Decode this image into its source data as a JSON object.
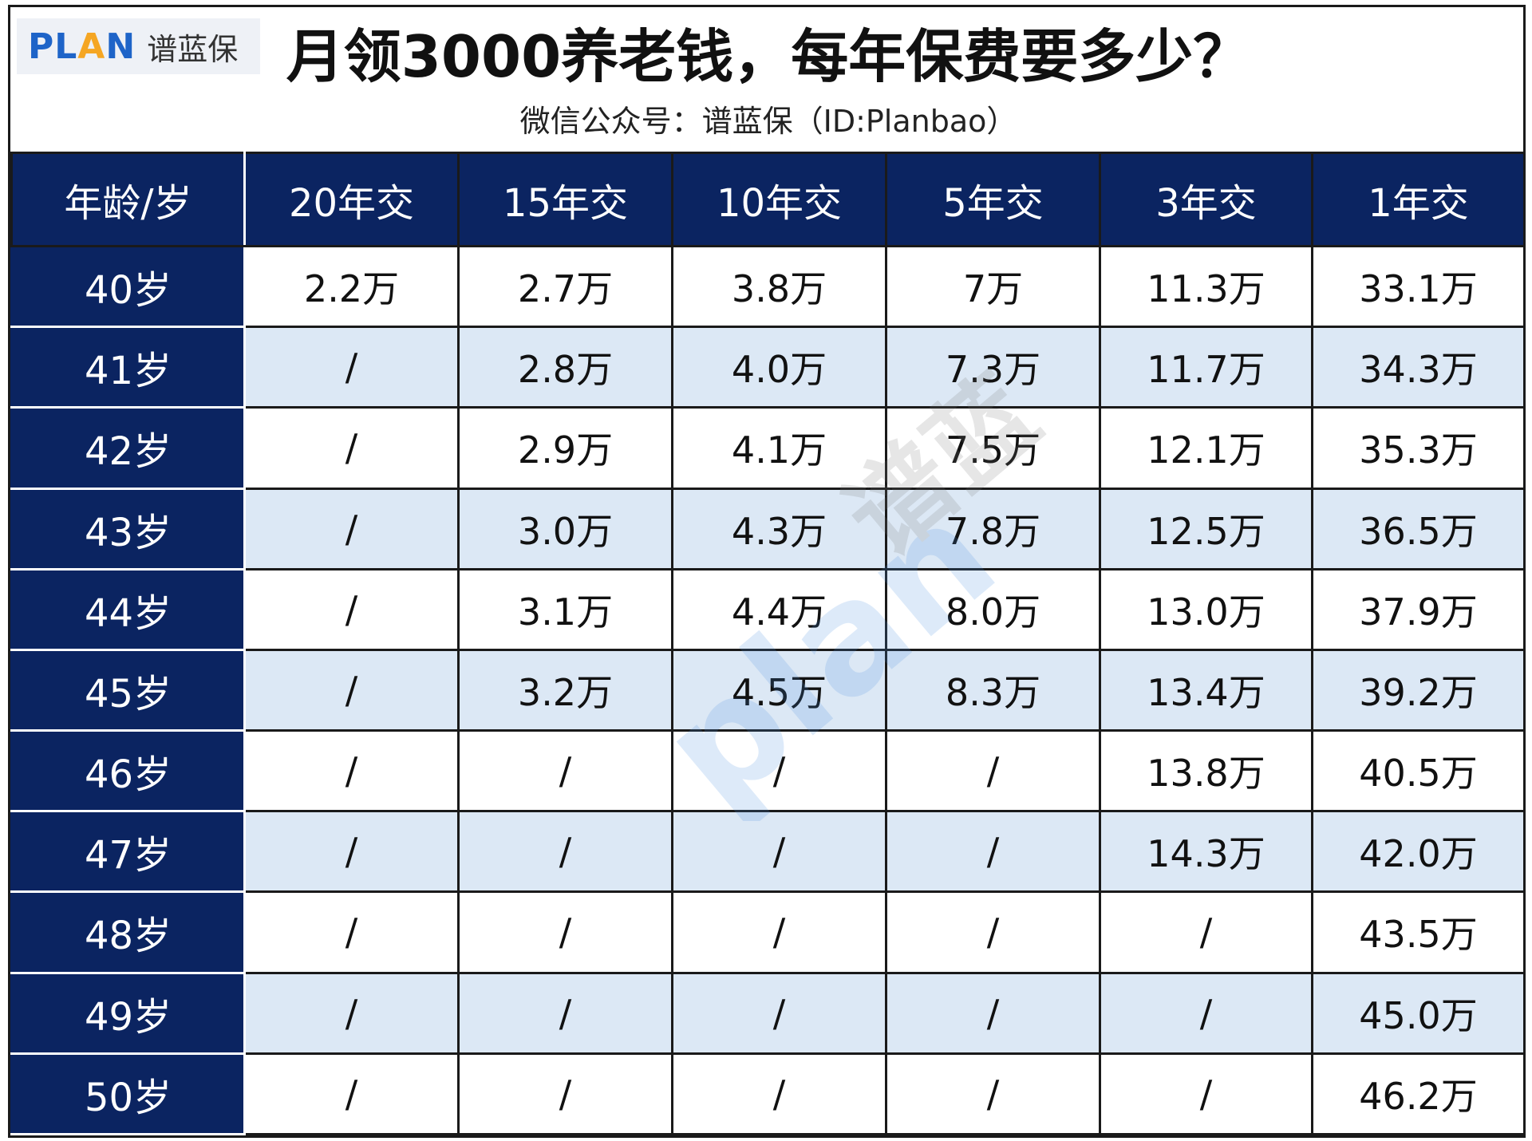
{
  "logo": {
    "brand": "PLAN",
    "name": "谱蓝保"
  },
  "title": "月领3000养老钱，每年保费要多少？",
  "subtitle": "微信公众号：谱蓝保（ID:Planbao）",
  "watermark": {
    "text_en": "plan",
    "text_cn": "谱蓝"
  },
  "colors": {
    "header_bg": "#0b2461",
    "alt_row": "#dce8f5",
    "brand_blue": "#1e64c8",
    "brand_orange": "#f5a623"
  },
  "chart_data": {
    "type": "table",
    "columns": [
      "年龄/岁",
      "20年交",
      "15年交",
      "10年交",
      "5年交",
      "3年交",
      "1年交"
    ],
    "rows": [
      [
        "40岁",
        "2.2万",
        "2.7万",
        "3.8万",
        "7万",
        "11.3万",
        "33.1万"
      ],
      [
        "41岁",
        "/",
        "2.8万",
        "4.0万",
        "7.3万",
        "11.7万",
        "34.3万"
      ],
      [
        "42岁",
        "/",
        "2.9万",
        "4.1万",
        "7.5万",
        "12.1万",
        "35.3万"
      ],
      [
        "43岁",
        "/",
        "3.0万",
        "4.3万",
        "7.8万",
        "12.5万",
        "36.5万"
      ],
      [
        "44岁",
        "/",
        "3.1万",
        "4.4万",
        "8.0万",
        "13.0万",
        "37.9万"
      ],
      [
        "45岁",
        "/",
        "3.2万",
        "4.5万",
        "8.3万",
        "13.4万",
        "39.2万"
      ],
      [
        "46岁",
        "/",
        "/",
        "/",
        "/",
        "13.8万",
        "40.5万"
      ],
      [
        "47岁",
        "/",
        "/",
        "/",
        "/",
        "14.3万",
        "42.0万"
      ],
      [
        "48岁",
        "/",
        "/",
        "/",
        "/",
        "/",
        "43.5万"
      ],
      [
        "49岁",
        "/",
        "/",
        "/",
        "/",
        "/",
        "45.0万"
      ],
      [
        "50岁",
        "/",
        "/",
        "/",
        "/",
        "/",
        "46.2万"
      ]
    ]
  }
}
